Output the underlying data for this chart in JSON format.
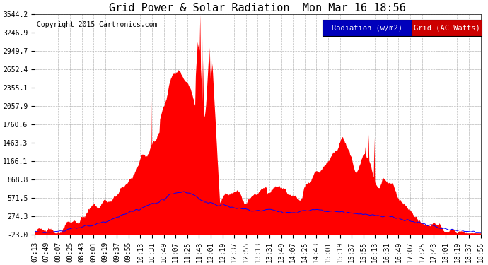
{
  "title": "Grid Power & Solar Radiation  Mon Mar 16 18:56",
  "copyright": "Copyright 2015 Cartronics.com",
  "background_color": "#ffffff",
  "plot_bg_color": "#ffffff",
  "grid_color": "#aaaaaa",
  "y_min": -23.0,
  "y_max": 3544.2,
  "y_ticks": [
    -23.0,
    274.3,
    571.5,
    868.8,
    1166.1,
    1463.3,
    1760.6,
    2057.9,
    2355.1,
    2652.4,
    2949.7,
    3246.9,
    3544.2
  ],
  "x_labels": [
    "07:13",
    "07:49",
    "08:07",
    "08:25",
    "08:43",
    "09:01",
    "09:19",
    "09:37",
    "09:55",
    "10:13",
    "10:31",
    "10:49",
    "11:07",
    "11:25",
    "11:43",
    "12:01",
    "12:19",
    "12:37",
    "12:55",
    "13:13",
    "13:31",
    "13:49",
    "14:07",
    "14:25",
    "14:43",
    "15:01",
    "15:19",
    "15:37",
    "15:55",
    "16:13",
    "16:31",
    "16:49",
    "17:07",
    "17:25",
    "17:43",
    "18:01",
    "18:19",
    "18:37",
    "18:55"
  ],
  "fill_color": "#ff0000",
  "line_color": "#0000ff",
  "title_fontsize": 11,
  "copyright_fontsize": 7,
  "tick_fontsize": 7,
  "legend_fontsize": 7.5,
  "legend_rad_bg": "#0000bb",
  "legend_grid_bg": "#cc0000",
  "legend_text_color": "#ffffff"
}
